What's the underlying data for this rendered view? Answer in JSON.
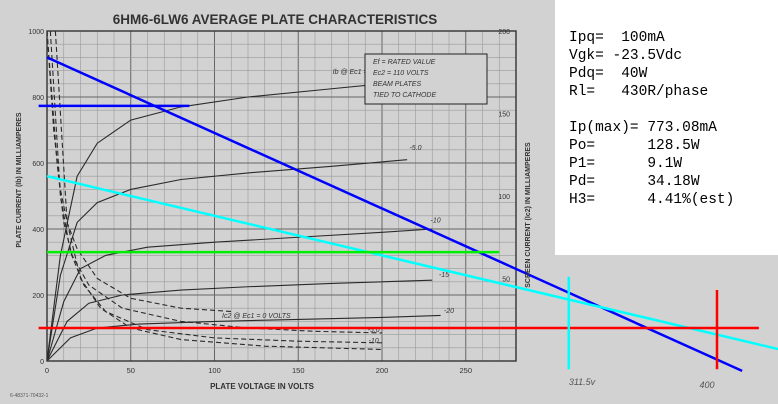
{
  "chart_data": {
    "type": "line",
    "title": "6HM6-6LW6 AVERAGE PLATE CHARACTERISTICS",
    "xlabel": "PLATE VOLTAGE IN VOLTS",
    "ylabel": "PLATE CURRENT (Ib) IN MILLIAMPERES",
    "y2label": "SCREEN CURRENT (Ic2) IN MILLIAMPERES",
    "xlim": [
      0,
      280
    ],
    "ylim": [
      0,
      1000
    ],
    "y2lim": [
      0,
      200
    ],
    "x_ticks": [
      0,
      50,
      100,
      150,
      200,
      250
    ],
    "y_ticks": [
      0,
      200,
      400,
      600,
      800,
      1000
    ],
    "y_tick_labels": [
      "0",
      "200",
      "400",
      "600",
      "800",
      "1000"
    ],
    "y2_ticks": [
      50,
      100,
      150,
      200
    ],
    "y2_tick_labels": [
      "50",
      "100",
      "150",
      "200"
    ],
    "conditions": [
      "Ef = RATED VALUE",
      "Ec2 = 110 VOLTS",
      "BEAM PLATES",
      "TIED TO CATHODE"
    ],
    "curve_labels": [
      {
        "text": "Ib @ Ec1 = 0 VOLTS",
        "x": 190,
        "y": 870
      },
      {
        "text": "-5.0",
        "x": 220,
        "y": 640
      },
      {
        "text": "-10",
        "x": 232,
        "y": 420
      },
      {
        "text": "-15",
        "x": 237,
        "y": 255
      },
      {
        "text": "-20",
        "x": 240,
        "y": 145
      },
      {
        "text": "Ic2 @ Ec1 = 0 VOLTS",
        "x": 125,
        "y": 130
      },
      {
        "text": "-5.0",
        "x": 195,
        "y": 88
      },
      {
        "text": "-10",
        "x": 195,
        "y": 55
      }
    ],
    "series": [
      {
        "x": [
          0,
          8,
          18,
          30,
          50,
          80,
          120,
          170,
          220
        ],
        "y": [
          0,
          320,
          560,
          660,
          730,
          770,
          800,
          825,
          850
        ]
      },
      {
        "x": [
          0,
          8,
          18,
          30,
          50,
          80,
          120,
          170,
          215
        ],
        "y": [
          0,
          260,
          420,
          480,
          520,
          550,
          570,
          590,
          610
        ]
      },
      {
        "x": [
          0,
          10,
          20,
          35,
          60,
          100,
          150,
          200,
          230
        ],
        "y": [
          0,
          180,
          280,
          320,
          345,
          360,
          375,
          390,
          400
        ]
      },
      {
        "x": [
          0,
          12,
          25,
          45,
          80,
          120,
          170,
          230
        ],
        "y": [
          0,
          120,
          175,
          200,
          215,
          225,
          235,
          245
        ]
      },
      {
        "x": [
          0,
          14,
          30,
          55,
          100,
          150,
          200,
          235
        ],
        "y": [
          0,
          70,
          100,
          112,
          120,
          126,
          132,
          138
        ]
      },
      {
        "x": [
          0,
          4,
          8,
          12,
          18,
          30,
          50,
          80,
          110
        ],
        "y": [
          1000,
          700,
          520,
          420,
          340,
          250,
          190,
          160,
          150
        ]
      },
      {
        "x": [
          0,
          6,
          10,
          15,
          25,
          45,
          80,
          120,
          160,
          200
        ],
        "y": [
          1000,
          600,
          420,
          320,
          230,
          160,
          120,
          100,
          90,
          85
        ]
      },
      {
        "x": [
          2,
          8,
          14,
          22,
          35,
          60,
          100,
          150,
          200
        ],
        "y": [
          1000,
          500,
          330,
          230,
          150,
          95,
          70,
          60,
          55
        ]
      },
      {
        "x": [
          5,
          12,
          20,
          32,
          50,
          80,
          130,
          200
        ],
        "y": [
          1000,
          420,
          250,
          160,
          100,
          65,
          45,
          35
        ]
      }
    ],
    "overlay_lines": [
      {
        "name": "loadline",
        "color": "#0000ff",
        "x": [
          0,
          415
        ],
        "y": [
          920,
          -30
        ]
      },
      {
        "name": "loadline-tangent",
        "color": "#00ffff",
        "x": [
          0,
          450
        ],
        "y": [
          560,
          20
        ]
      },
      {
        "name": "quiescent",
        "color": "#00ee00",
        "x": [
          0,
          270
        ],
        "y": [
          330,
          330
        ]
      },
      {
        "name": "ip-max",
        "color": "#0000ff",
        "x": [
          -5,
          85
        ],
        "y": [
          773,
          773
        ]
      },
      {
        "name": "bias-reference",
        "color": "#ff0000",
        "x": [
          -5,
          425
        ],
        "y": [
          100,
          100
        ]
      },
      {
        "name": "b-plus",
        "color": "#ff0000",
        "x": [
          400,
          400
        ],
        "y": [
          215,
          -25
        ]
      },
      {
        "name": "operating-point",
        "color": "#00ffff",
        "x": [
          311.5,
          311.5
        ],
        "y": [
          255,
          -25
        ]
      }
    ],
    "annotations": [
      {
        "text": "311.5v",
        "x": 311.5
      },
      {
        "text": "400",
        "x": 400
      }
    ]
  },
  "results": {
    "ipq": "Ipq=  100mA",
    "vgk": "Vgk= -23.5Vdc",
    "pdq": "Pdq=  40W",
    "rl": "Rl=   430R/phase",
    "ipmax": "Ip(max)= 773.08mA",
    "po": "Po=      128.5W",
    "p1": "P1=      9.1W",
    "pd": "Pd=      34.18W",
    "h3": "H3=      4.41%(est)"
  },
  "print_code": "6-48371-70432-1"
}
